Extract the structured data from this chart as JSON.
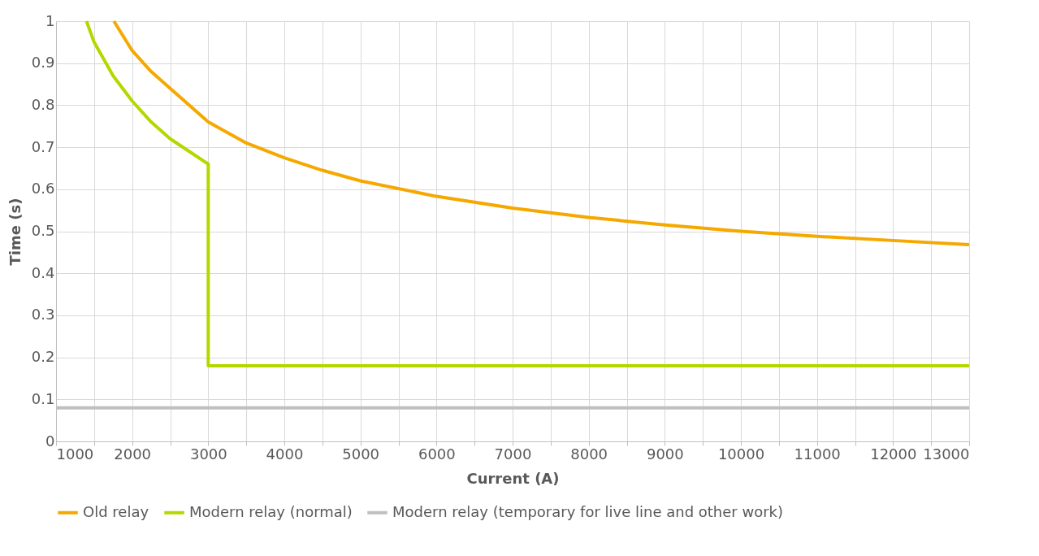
{
  "chart_data": {
    "type": "line",
    "xlabel": "Current (A)",
    "ylabel": "Time (s)",
    "xlim": [
      1000,
      13000
    ],
    "xticks": [
      1000,
      {
        "value": 1500,
        "label": null
      },
      2000,
      {
        "value": 2500,
        "label": null
      },
      3000,
      {
        "value": 3500,
        "label": null
      },
      4000,
      {
        "value": 4500,
        "label": null
      },
      5000,
      {
        "value": 5500,
        "label": null
      },
      6000,
      {
        "value": 6500,
        "label": null
      },
      7000,
      {
        "value": 7500,
        "label": null
      },
      8000,
      {
        "value": 8500,
        "label": null
      },
      9000,
      {
        "value": 9500,
        "label": null
      },
      10000,
      {
        "value": 10500,
        "label": null
      },
      11000,
      {
        "value": 11500,
        "label": null
      },
      12000,
      {
        "value": 12500,
        "label": null
      },
      13000
    ],
    "ylim": [
      0,
      1
    ],
    "yticks": [
      0,
      0.1,
      0.2,
      0.3,
      0.4,
      0.5,
      0.6,
      0.7,
      0.8,
      0.9,
      1
    ],
    "grid": true,
    "legend": "bottom",
    "marker": "none",
    "line_style": "solid",
    "series": [
      {
        "name": "Old relay",
        "color": "#f5a800",
        "x": [
          1760,
          2000,
          2250,
          2500,
          3000,
          3500,
          4000,
          4500,
          5000,
          6000,
          7000,
          8000,
          9000,
          10000,
          11000,
          12000,
          13000
        ],
        "values": [
          1,
          0.93,
          0.88,
          0.84,
          0.76,
          0.71,
          0.675,
          0.645,
          0.62,
          0.583,
          0.555,
          0.533,
          0.515,
          0.5,
          0.488,
          0.478,
          0.468
        ]
      },
      {
        "name": "Modern relay (normal)",
        "color": "#b5d700",
        "x": [
          1400,
          1500,
          1750,
          2000,
          2250,
          2500,
          2750,
          3000,
          3000,
          13000
        ],
        "values": [
          1,
          0.95,
          0.87,
          0.81,
          0.76,
          0.72,
          0.69,
          0.66,
          0.18,
          0.18
        ]
      },
      {
        "name": "Modern relay (temporary for live line and other work)",
        "color": "#bfbfbf",
        "x": [
          1000,
          13000
        ],
        "values": [
          0.08,
          0.08
        ]
      }
    ]
  }
}
